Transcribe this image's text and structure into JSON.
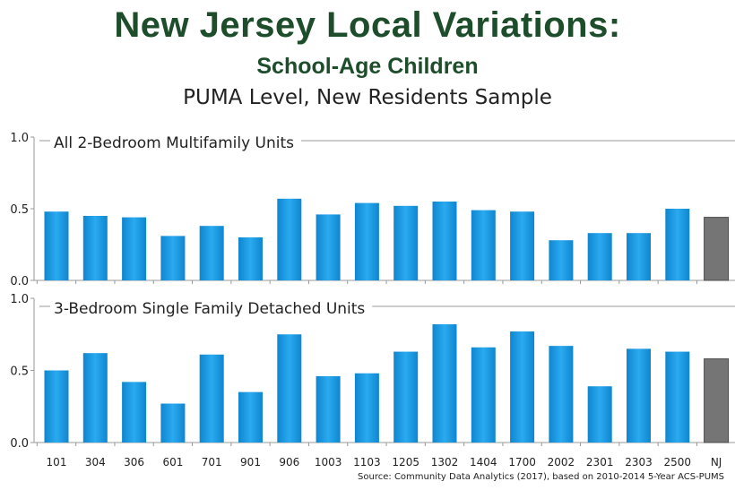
{
  "title": "New Jersey Local Variations:",
  "subtitle": "School-Age Children",
  "subtitle2": "PUMA Level, New Residents Sample",
  "source": "Source: Community Data Analytics (2017), based on 2010-2014 5-Year ACS-PUMS",
  "colors": {
    "bar": "#1a9ae0",
    "bar_nj": "#757575",
    "title": "#1e4d2b"
  },
  "chart_data": [
    {
      "type": "bar",
      "title": "All 2-Bedroom Multifamily Units",
      "categories": [
        "101",
        "304",
        "306",
        "601",
        "701",
        "901",
        "906",
        "1003",
        "1103",
        "1205",
        "1302",
        "1404",
        "1700",
        "2002",
        "2301",
        "2303",
        "2500",
        "NJ"
      ],
      "values": [
        0.48,
        0.45,
        0.44,
        0.31,
        0.38,
        0.3,
        0.57,
        0.46,
        0.54,
        0.52,
        0.55,
        0.49,
        0.48,
        0.28,
        0.33,
        0.33,
        0.5,
        0.44
      ],
      "ylim": [
        0,
        1.0
      ],
      "yticks": [
        "0.0",
        "0.5",
        "1.0"
      ],
      "highlight": "NJ"
    },
    {
      "type": "bar",
      "title": "3-Bedroom Single Family Detached Units",
      "categories": [
        "101",
        "304",
        "306",
        "601",
        "701",
        "901",
        "906",
        "1003",
        "1103",
        "1205",
        "1302",
        "1404",
        "1700",
        "2002",
        "2301",
        "2303",
        "2500",
        "NJ"
      ],
      "values": [
        0.5,
        0.62,
        0.42,
        0.27,
        0.61,
        0.35,
        0.75,
        0.46,
        0.48,
        0.63,
        0.82,
        0.66,
        0.77,
        0.67,
        0.39,
        0.65,
        0.63,
        0.58
      ],
      "ylim": [
        0,
        1.0
      ],
      "yticks": [
        "0.0",
        "0.5",
        "1.0"
      ],
      "highlight": "NJ"
    }
  ]
}
